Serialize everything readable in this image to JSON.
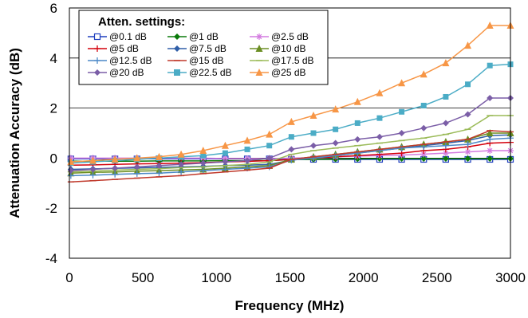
{
  "chart_data": {
    "type": "line",
    "xlabel": "Frequency (MHz)",
    "ylabel": "Attenuation Accuracy (dB)",
    "xlim": [
      0,
      3000
    ],
    "ylim": [
      -4,
      6
    ],
    "xticks": [
      0,
      500,
      1000,
      1500,
      2000,
      2500,
      3000
    ],
    "yticks": [
      -4,
      -2,
      0,
      2,
      4,
      6
    ],
    "grid": "horizontal",
    "legend": {
      "title": "Atten. settings:",
      "placement": "top-left",
      "columns": 3
    },
    "x": [
      10,
      160,
      310,
      460,
      610,
      760,
      910,
      1060,
      1210,
      1360,
      1510,
      1660,
      1810,
      1960,
      2110,
      2260,
      2410,
      2560,
      2710,
      2860,
      3000
    ],
    "series": [
      {
        "name": "@0.1 dB",
        "color": "#1f3fbf",
        "marker": "square-open",
        "values": [
          -0.03,
          -0.03,
          -0.03,
          -0.03,
          -0.03,
          -0.03,
          -0.03,
          -0.03,
          -0.03,
          -0.03,
          -0.05,
          -0.05,
          -0.05,
          -0.05,
          -0.05,
          -0.05,
          -0.05,
          -0.05,
          -0.05,
          -0.05,
          -0.05
        ]
      },
      {
        "name": "@1 dB",
        "color": "#0a7a0a",
        "marker": "diamond",
        "values": [
          -0.12,
          -0.12,
          -0.12,
          -0.12,
          -0.11,
          -0.11,
          -0.11,
          -0.1,
          -0.1,
          -0.1,
          -0.06,
          -0.05,
          -0.04,
          -0.03,
          -0.02,
          -0.02,
          -0.02,
          -0.02,
          -0.02,
          -0.02,
          -0.02
        ]
      },
      {
        "name": "@2.5 dB",
        "color": "#d37ce0",
        "marker": "star",
        "values": [
          0.0,
          0.0,
          0.0,
          0.0,
          0.0,
          0.0,
          0.0,
          -0.02,
          -0.02,
          -0.02,
          0.0,
          0.02,
          0.05,
          0.08,
          0.1,
          0.12,
          0.16,
          0.2,
          0.25,
          0.3,
          0.3
        ]
      },
      {
        "name": "@5 dB",
        "color": "#d4000c",
        "marker": "plus",
        "values": [
          -0.28,
          -0.27,
          -0.25,
          -0.23,
          -0.22,
          -0.2,
          -0.18,
          -0.15,
          -0.13,
          -0.1,
          -0.05,
          0.0,
          0.05,
          0.1,
          0.15,
          0.2,
          0.3,
          0.35,
          0.45,
          0.6,
          0.63
        ]
      },
      {
        "name": "@7.5 dB",
        "color": "#305fa8",
        "marker": "diamond",
        "values": [
          -0.45,
          -0.43,
          -0.41,
          -0.39,
          -0.37,
          -0.35,
          -0.33,
          -0.3,
          -0.28,
          -0.25,
          -0.08,
          0.0,
          0.1,
          0.2,
          0.3,
          0.4,
          0.5,
          0.6,
          0.7,
          0.9,
          0.93
        ]
      },
      {
        "name": "@10 dB",
        "color": "#6b8e23",
        "marker": "triangle",
        "values": [
          -0.6,
          -0.57,
          -0.55,
          -0.52,
          -0.5,
          -0.47,
          -0.45,
          -0.4,
          -0.35,
          -0.3,
          -0.05,
          0.05,
          0.15,
          0.25,
          0.35,
          0.45,
          0.55,
          0.65,
          0.75,
          1.0,
          1.0
        ]
      },
      {
        "name": "@12.5 dB",
        "color": "#4c88c7",
        "marker": "plus",
        "values": [
          -0.7,
          -0.68,
          -0.65,
          -0.62,
          -0.6,
          -0.55,
          -0.5,
          -0.45,
          -0.4,
          -0.35,
          -0.08,
          0.0,
          0.1,
          0.2,
          0.3,
          0.4,
          0.45,
          0.5,
          0.55,
          0.75,
          0.8
        ]
      },
      {
        "name": "@15 dB",
        "color": "#c0392b",
        "marker": "line",
        "values": [
          -0.95,
          -0.9,
          -0.85,
          -0.8,
          -0.75,
          -0.7,
          -0.62,
          -0.55,
          -0.48,
          -0.4,
          -0.05,
          0.05,
          0.15,
          0.25,
          0.35,
          0.45,
          0.55,
          0.65,
          0.75,
          1.1,
          1.05
        ]
      },
      {
        "name": "@17.5 dB",
        "color": "#9bbb59",
        "marker": "line",
        "values": [
          -0.55,
          -0.52,
          -0.48,
          -0.45,
          -0.42,
          -0.38,
          -0.35,
          -0.3,
          -0.25,
          -0.15,
          0.15,
          0.3,
          0.4,
          0.5,
          0.6,
          0.7,
          0.8,
          0.95,
          1.15,
          1.7,
          1.7
        ]
      },
      {
        "name": "@20 dB",
        "color": "#7b5ea7",
        "marker": "diamond",
        "values": [
          -0.5,
          -0.45,
          -0.4,
          -0.35,
          -0.3,
          -0.25,
          -0.2,
          -0.15,
          -0.1,
          0.0,
          0.35,
          0.5,
          0.6,
          0.75,
          0.85,
          1.0,
          1.2,
          1.4,
          1.75,
          2.4,
          2.4
        ]
      },
      {
        "name": "@22.5 dB",
        "color": "#4bacc6",
        "marker": "square",
        "values": [
          -0.2,
          -0.15,
          -0.1,
          -0.05,
          0.0,
          0.05,
          0.1,
          0.2,
          0.35,
          0.5,
          0.85,
          1.0,
          1.15,
          1.4,
          1.6,
          1.85,
          2.1,
          2.45,
          2.95,
          3.7,
          3.75
        ]
      },
      {
        "name": "@25 dB",
        "color": "#f79646",
        "marker": "triangle",
        "values": [
          -0.15,
          -0.1,
          -0.05,
          0.0,
          0.05,
          0.15,
          0.3,
          0.5,
          0.7,
          0.95,
          1.45,
          1.7,
          1.95,
          2.25,
          2.6,
          3.0,
          3.35,
          3.8,
          4.5,
          5.3,
          5.3
        ]
      }
    ]
  }
}
